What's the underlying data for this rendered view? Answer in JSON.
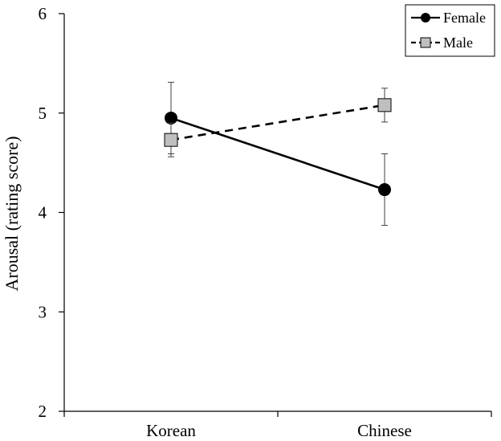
{
  "chart_data": {
    "type": "line",
    "categories": [
      "Korean",
      "Chinese"
    ],
    "ylabel": "Arousal (rating score)",
    "ylim": [
      2,
      6
    ],
    "yticks": [
      2,
      3,
      4,
      5,
      6
    ],
    "grid": false,
    "legend_position": "top-right",
    "series": [
      {
        "name": "Female",
        "values": [
          4.95,
          4.23
        ],
        "error": [
          0.36,
          0.36
        ],
        "marker": "circle",
        "line": "solid",
        "color": "#000000"
      },
      {
        "name": "Male",
        "values": [
          4.73,
          5.08
        ],
        "error": [
          0.17,
          0.17
        ],
        "marker": "square",
        "line": "dashed",
        "color": "#000000",
        "marker_fill": "#bfbfbf"
      }
    ]
  }
}
